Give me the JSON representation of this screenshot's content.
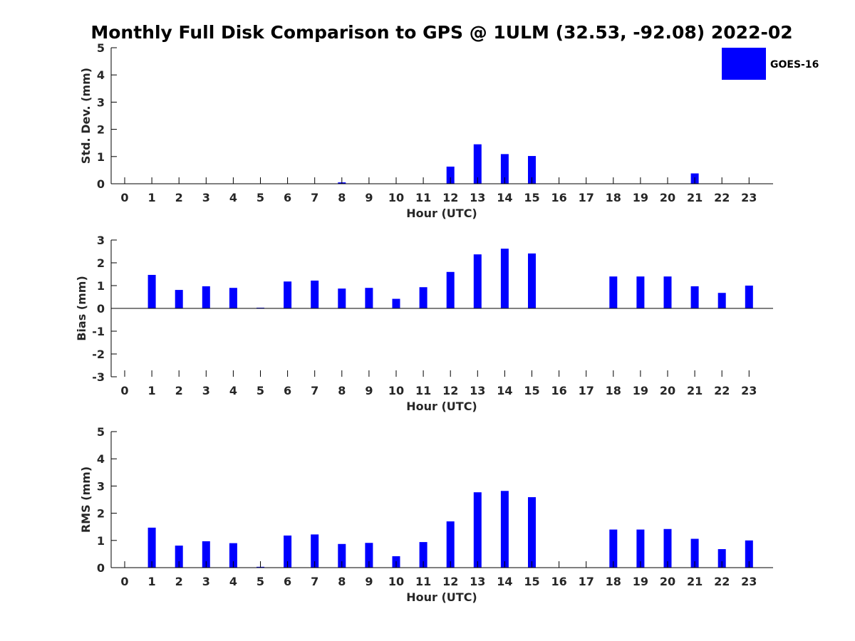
{
  "figure": {
    "title": "Monthly Full Disk Comparison to GPS @ 1ULM (32.53, -92.08) 2022-02",
    "legend": {
      "label": "GOES-16",
      "color": "#0000ff"
    }
  },
  "chart_data": [
    {
      "type": "bar",
      "xlabel": "Hour (UTC)",
      "ylabel": "Std. Dev. (mm)",
      "ylim": [
        0,
        5
      ],
      "yticks": [
        0,
        1,
        2,
        3,
        4,
        5
      ],
      "categories": [
        "0",
        "1",
        "2",
        "3",
        "4",
        "5",
        "6",
        "7",
        "8",
        "9",
        "10",
        "11",
        "12",
        "13",
        "14",
        "15",
        "16",
        "17",
        "18",
        "19",
        "20",
        "21",
        "22",
        "23"
      ],
      "series": [
        {
          "name": "GOES-16",
          "color": "#0000ff",
          "values": [
            null,
            null,
            null,
            null,
            null,
            null,
            null,
            null,
            0.05,
            null,
            null,
            null,
            0.63,
            1.45,
            1.09,
            1.02,
            null,
            null,
            null,
            null,
            null,
            0.38,
            null,
            null
          ]
        }
      ]
    },
    {
      "type": "bar",
      "xlabel": "Hour (UTC)",
      "ylabel": "Bias (mm)",
      "ylim": [
        -3,
        3
      ],
      "yticks": [
        -3,
        -2,
        -1,
        0,
        1,
        2,
        3
      ],
      "categories": [
        "0",
        "1",
        "2",
        "3",
        "4",
        "5",
        "6",
        "7",
        "8",
        "9",
        "10",
        "11",
        "12",
        "13",
        "14",
        "15",
        "16",
        "17",
        "18",
        "19",
        "20",
        "21",
        "22",
        "23"
      ],
      "series": [
        {
          "name": "GOES-16",
          "color": "#0000ff",
          "values": [
            null,
            1.47,
            0.81,
            0.97,
            0.9,
            0.03,
            1.18,
            1.22,
            0.87,
            0.9,
            0.42,
            0.93,
            1.6,
            2.37,
            2.62,
            2.41,
            null,
            null,
            1.4,
            1.4,
            1.4,
            0.97,
            0.68,
            1.0
          ]
        }
      ]
    },
    {
      "type": "bar",
      "xlabel": "Hour (UTC)",
      "ylabel": "RMS (mm)",
      "ylim": [
        0,
        5
      ],
      "yticks": [
        0,
        1,
        2,
        3,
        4,
        5
      ],
      "categories": [
        "0",
        "1",
        "2",
        "3",
        "4",
        "5",
        "6",
        "7",
        "8",
        "9",
        "10",
        "11",
        "12",
        "13",
        "14",
        "15",
        "16",
        "17",
        "18",
        "19",
        "20",
        "21",
        "22",
        "23"
      ],
      "series": [
        {
          "name": "GOES-16",
          "color": "#0000ff",
          "values": [
            null,
            1.47,
            0.81,
            0.97,
            0.9,
            0.03,
            1.18,
            1.22,
            0.87,
            0.91,
            0.42,
            0.94,
            1.7,
            2.77,
            2.82,
            2.59,
            null,
            null,
            1.4,
            1.4,
            1.42,
            1.06,
            0.68,
            1.0
          ]
        }
      ]
    }
  ]
}
